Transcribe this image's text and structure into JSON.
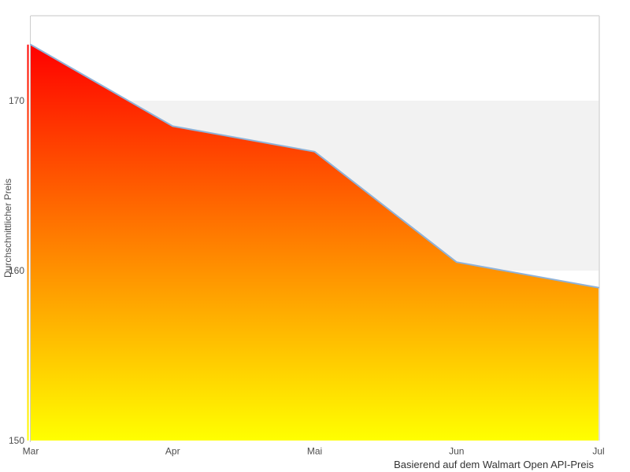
{
  "chart": {
    "title": "",
    "y_axis_title": "Durchschnittlicher Preis",
    "caption": "Basierend auf dem Walmart Open API-Preis"
  },
  "chart_data": {
    "type": "area",
    "categories": [
      "Mar",
      "Apr",
      "Mai",
      "Jun",
      "Jul"
    ],
    "values": [
      173.3,
      168.5,
      167.0,
      160.5,
      159.0
    ],
    "title": "",
    "xlabel": "",
    "ylabel": "Durchschnittlicher Preis",
    "caption": "Basierend auf dem Walmart Open API-Preis",
    "ylim": [
      150,
      175
    ],
    "yticks": [
      150,
      160,
      170
    ],
    "grid": false,
    "legend": "none",
    "plot_band": {
      "from": 160,
      "to": 170,
      "color": "#f2f2f2"
    },
    "area_gradient": {
      "top": "#ff0000",
      "bottom": "#ffff00"
    },
    "line_color": "#8fb2d8",
    "border_color": "#d9d9d9",
    "axis_line_color": "#cccccc",
    "tick_label_color": "#4d4d4d"
  }
}
